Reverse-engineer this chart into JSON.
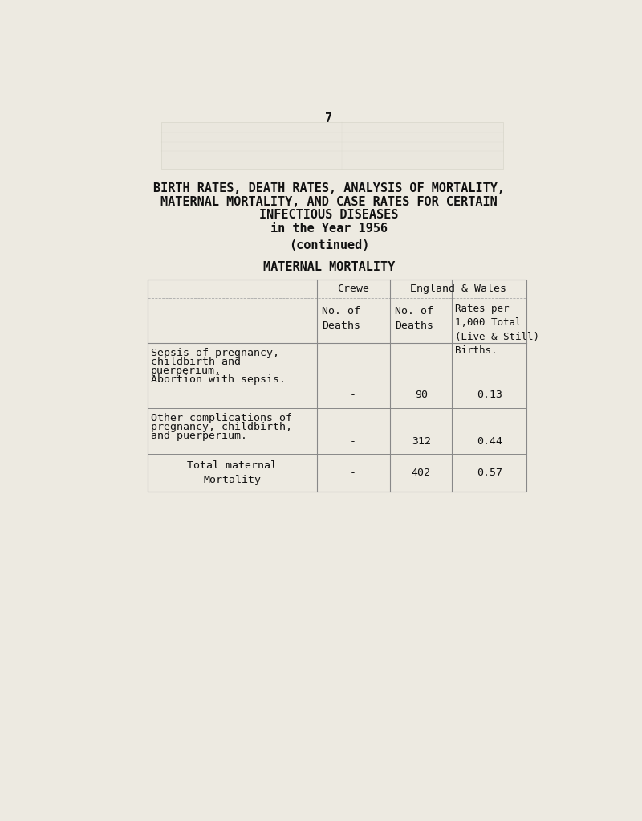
{
  "page_number": "7",
  "title_line1": "BIRTH RATES, DEATH RATES, ANALYSIS OF MORTALITY,",
  "title_line2": "MATERNAL MORTALITY, AND CASE RATES FOR CERTAIN",
  "title_line3": "INFECTIOUS DISEASES",
  "title_line4": "in the Year 1956",
  "title_line5": "(continued)",
  "section_title": "MATERNAL MORTALITY",
  "bg_color": "#edeae1",
  "font_color": "#111111",
  "line_color": "#888888",
  "dashed_color": "#aaaaaa",
  "font_size_title": 11.0,
  "font_size_table": 9.5,
  "row1_label_lines": [
    "Sepsis of pregnancy,",
    "childbirth and",
    "puerperium,",
    "Abortion with sepsis."
  ],
  "row2_label_lines": [
    "Other complications of",
    "pregnancy, childbirth,",
    "and puerperium."
  ],
  "row3_label_lines": [
    "Total maternal",
    "Mortality"
  ],
  "row1_crewe": "-",
  "row1_no_deaths": "90",
  "row1_rate": "0.13",
  "row2_crewe": "-",
  "row2_no_deaths": "312",
  "row2_rate": "0.44",
  "row3_crewe": "-",
  "row3_no_deaths": "402",
  "row3_rate": "0.57"
}
